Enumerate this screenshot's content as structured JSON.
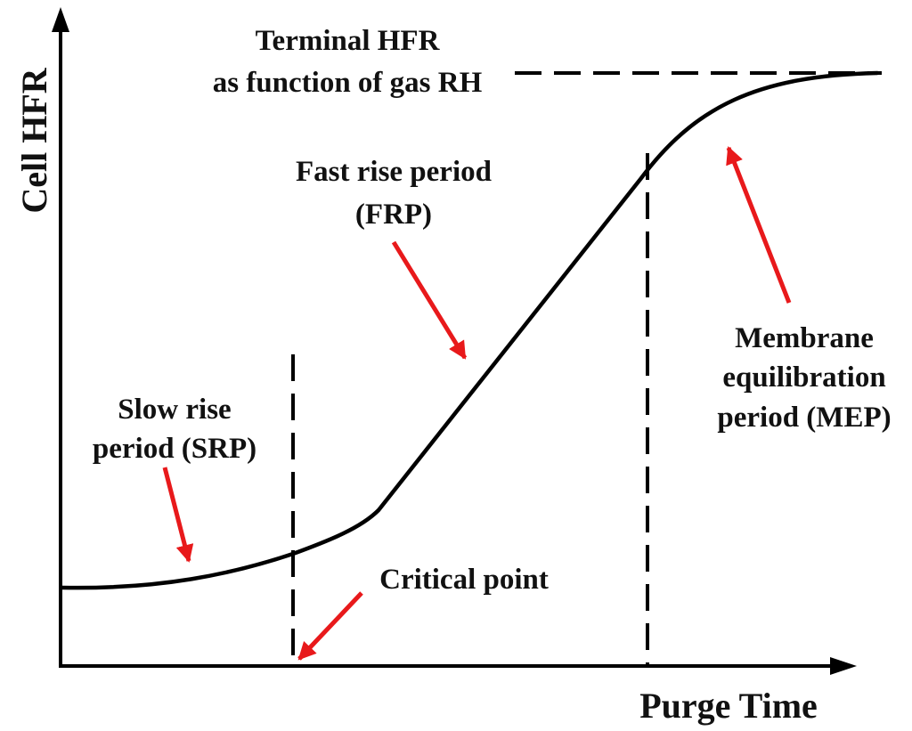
{
  "axes": {
    "x_label": "Purge Time",
    "y_label": "Cell HFR"
  },
  "annotations": {
    "terminal_line1": "Terminal HFR",
    "terminal_line2": "as function of gas RH",
    "frp_line1": "Fast rise period",
    "frp_line2": "(FRP)",
    "srp_line1": "Slow rise",
    "srp_line2": "period (SRP)",
    "mep_line1": "Membrane",
    "mep_line2": "equilibration",
    "mep_line3": "period (MEP)",
    "critical": "Critical point"
  },
  "colors": {
    "axis": "#000000",
    "curve": "#000000",
    "arrow": "#e8191b",
    "text": "#111111"
  }
}
